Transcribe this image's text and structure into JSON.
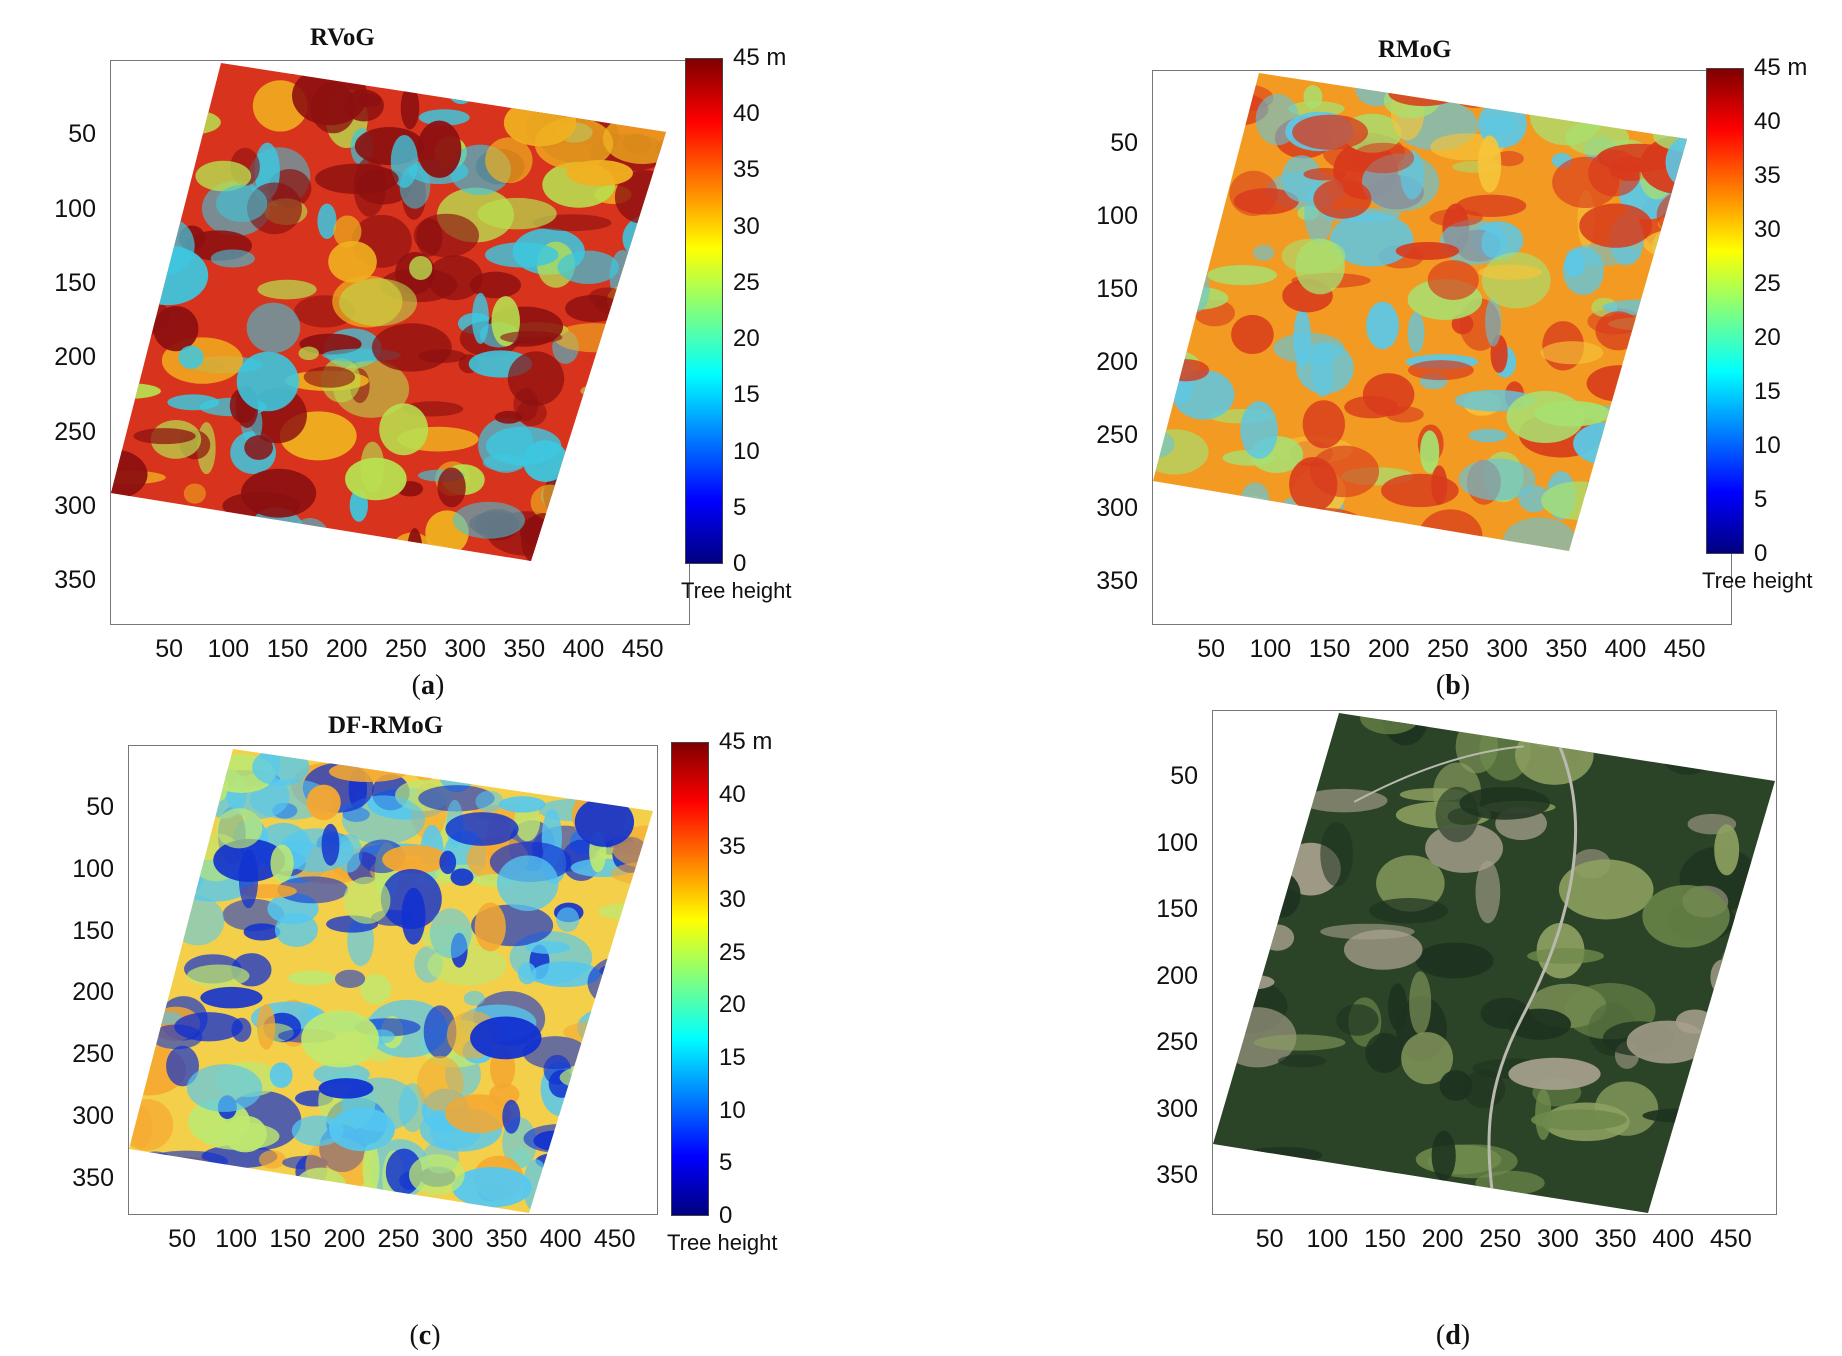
{
  "chart_data": [
    {
      "type": "heatmap",
      "title": "RVoG",
      "subcaption": "a",
      "x_ticks": [
        "50",
        "100",
        "150",
        "200",
        "250",
        "300",
        "350",
        "400",
        "450"
      ],
      "y_ticks": [
        "50",
        "100",
        "150",
        "200",
        "250",
        "300",
        "350"
      ],
      "colorbar": {
        "ticks": [
          "45 m",
          "40",
          "35",
          "30",
          "25",
          "20",
          "15",
          "10",
          "5",
          "0"
        ],
        "range": [
          0,
          45
        ],
        "unit": "m",
        "label": "Tree height",
        "colormap": "jet"
      },
      "colors": {
        "base": "#d8331c",
        "dark": "#8c1010",
        "mid": "#f0b020",
        "low": "#3cc8e0",
        "green": "#b8e050"
      }
    },
    {
      "type": "heatmap",
      "title": "RMoG",
      "subcaption": "b",
      "x_ticks": [
        "50",
        "100",
        "150",
        "200",
        "250",
        "300",
        "350",
        "400",
        "450"
      ],
      "y_ticks": [
        "50",
        "100",
        "150",
        "200",
        "250",
        "300",
        "350"
      ],
      "colorbar": {
        "ticks": [
          "45 m",
          "40",
          "35",
          "30",
          "25",
          "20",
          "15",
          "10",
          "5",
          "0"
        ],
        "range": [
          0,
          45
        ],
        "unit": "m",
        "label": "Tree height",
        "colormap": "jet"
      },
      "colors": {
        "base": "#f29a22",
        "dark": "#d83a1c",
        "mid": "#f6c43a",
        "low": "#5cc8e6",
        "green": "#a8e070"
      }
    },
    {
      "type": "heatmap",
      "title": "DF-RMoG",
      "subcaption": "c",
      "x_ticks": [
        "50",
        "100",
        "150",
        "200",
        "250",
        "300",
        "350",
        "400",
        "450"
      ],
      "y_ticks": [
        "50",
        "100",
        "150",
        "200",
        "250",
        "300",
        "350"
      ],
      "colorbar": {
        "ticks": [
          "45 m",
          "40",
          "35",
          "30",
          "25",
          "20",
          "15",
          "10",
          "5",
          "0"
        ],
        "range": [
          0,
          45
        ],
        "unit": "m",
        "label": "Tree height",
        "colormap": "jet"
      },
      "colors": {
        "base": "#f4d04a",
        "dark": "#1030d0",
        "mid": "#f5a830",
        "low": "#55c8f0",
        "green": "#bfe870"
      }
    },
    {
      "type": "image",
      "title": "",
      "subcaption": "d",
      "x_ticks": [
        "50",
        "100",
        "150",
        "200",
        "250",
        "300",
        "350",
        "400",
        "450"
      ],
      "y_ticks": [
        "50",
        "100",
        "150",
        "200",
        "250",
        "300",
        "350"
      ],
      "colors": {
        "base": "#2b4326",
        "dark": "#1e3320",
        "field": "#6f8a4c",
        "field2": "#8da061",
        "road": "#b9b9b0",
        "town": "#a6a08c"
      }
    }
  ]
}
